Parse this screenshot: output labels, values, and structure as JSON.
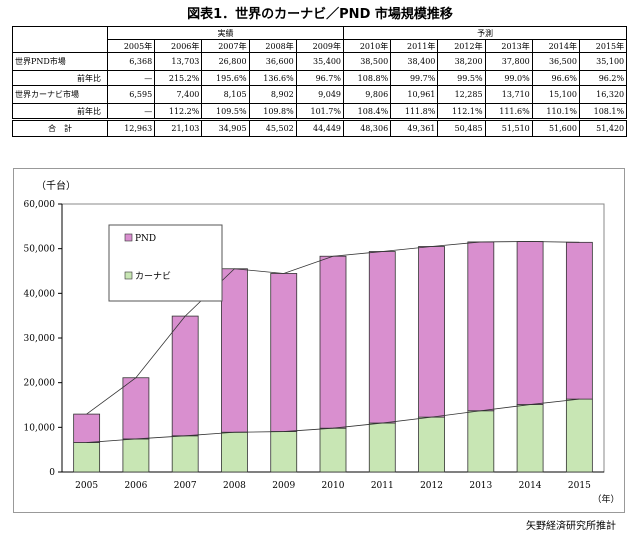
{
  "title": "図表1．世界のカーナビ／PND 市場規模推移",
  "table": {
    "group_labels": {
      "actual": "実績",
      "forecast": "予測"
    },
    "years": [
      "2005年",
      "2006年",
      "2007年",
      "2008年",
      "2009年",
      "2010年",
      "2011年",
      "2012年",
      "2013年",
      "2014年",
      "2015年"
    ],
    "rows": [
      {
        "label": "世界PND市場",
        "values": [
          "6,368",
          "13,703",
          "26,800",
          "36,600",
          "35,400",
          "38,500",
          "38,400",
          "38,200",
          "37,800",
          "36,500",
          "35,100"
        ]
      },
      {
        "label": "前年比",
        "values": [
          "—",
          "215.2%",
          "195.6%",
          "136.6%",
          "96.7%",
          "108.8%",
          "99.7%",
          "99.5%",
          "99.0%",
          "96.6%",
          "96.2%"
        ]
      },
      {
        "label": "世界カーナビ市場",
        "values": [
          "6,595",
          "7,400",
          "8,105",
          "8,902",
          "9,049",
          "9,806",
          "10,961",
          "12,285",
          "13,710",
          "15,100",
          "16,320"
        ]
      },
      {
        "label": "前年比",
        "values": [
          "—",
          "112.2%",
          "109.5%",
          "109.8%",
          "101.7%",
          "108.4%",
          "111.8%",
          "112.1%",
          "111.6%",
          "110.1%",
          "108.1%"
        ]
      },
      {
        "label": "合　計",
        "values": [
          "12,963",
          "21,103",
          "34,905",
          "45,502",
          "44,449",
          "48,306",
          "49,361",
          "50,485",
          "51,510",
          "51,600",
          "51,420"
        ]
      }
    ]
  },
  "chart_data": {
    "type": "bar",
    "stacked": true,
    "unit_label": "（千台）",
    "x_unit_label": "（年）",
    "categories": [
      "2005",
      "2006",
      "2007",
      "2008",
      "2009",
      "2010",
      "2011",
      "2012",
      "2013",
      "2014",
      "2015"
    ],
    "series": [
      {
        "name": "カーナビ",
        "values": [
          6595,
          7400,
          8105,
          8902,
          9049,
          9806,
          10961,
          12285,
          13710,
          15100,
          16320
        ],
        "color": "#c8e6b4"
      },
      {
        "name": "PND",
        "values": [
          6368,
          13703,
          26800,
          36600,
          35400,
          38500,
          38400,
          38200,
          37800,
          36500,
          35100
        ],
        "color": "#d98fcf"
      }
    ],
    "ylim": [
      0,
      60000
    ],
    "yticks": [
      0,
      10000,
      20000,
      30000,
      40000,
      50000,
      60000
    ],
    "ytick_labels": [
      "0",
      "10,000",
      "20,000",
      "30,000",
      "40,000",
      "50,000",
      "60,000"
    ],
    "legend": [
      {
        "label": "PND",
        "color": "#d98fcf"
      },
      {
        "label": "カーナビ",
        "color": "#c8e6b4"
      }
    ],
    "legend_position": "top-left",
    "grid": false
  },
  "source": "矢野経済研究所推計"
}
